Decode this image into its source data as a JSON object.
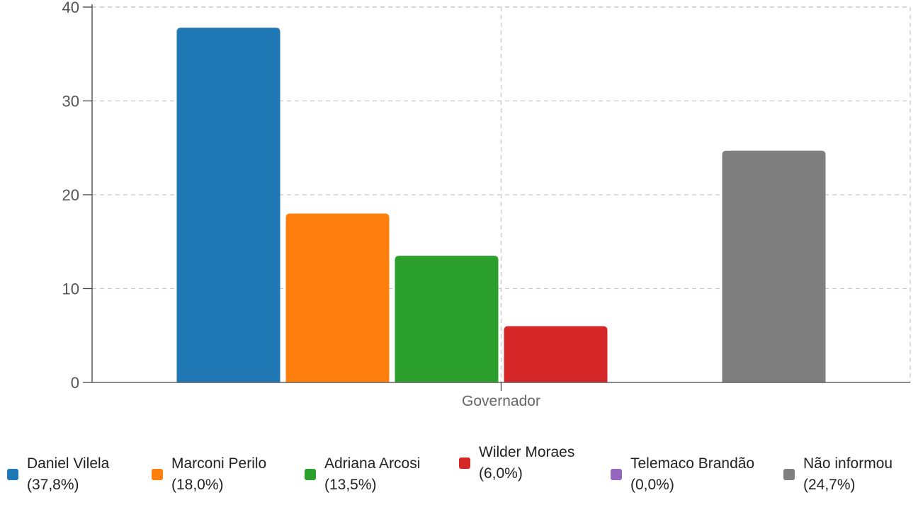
{
  "chart_data": {
    "type": "bar",
    "categories": [
      "Governador"
    ],
    "series": [
      {
        "name": "Daniel Vilela (37,8%)",
        "values": [
          37.8
        ],
        "color": "#1f77b4"
      },
      {
        "name": "Marconi Perilo (18,0%)",
        "values": [
          18.0
        ],
        "color": "#ff7f0e"
      },
      {
        "name": "Adriana Arcosi (13,5%)",
        "values": [
          13.5
        ],
        "color": "#2ca02c"
      },
      {
        "name": "Wilder Moraes (6,0%)",
        "values": [
          6.0
        ],
        "color": "#d62728"
      },
      {
        "name": "Telemaco Brandão (0,0%)",
        "values": [
          0.0
        ],
        "color": "#9467bd"
      },
      {
        "name": "Não informou (24,7%)",
        "values": [
          24.7
        ],
        "color": "#7f7f7f"
      }
    ],
    "yticks": [
      "0",
      "10",
      "20",
      "30",
      "40"
    ],
    "ylim": [
      0,
      40
    ],
    "grid": true,
    "legend_position": "bottom"
  }
}
